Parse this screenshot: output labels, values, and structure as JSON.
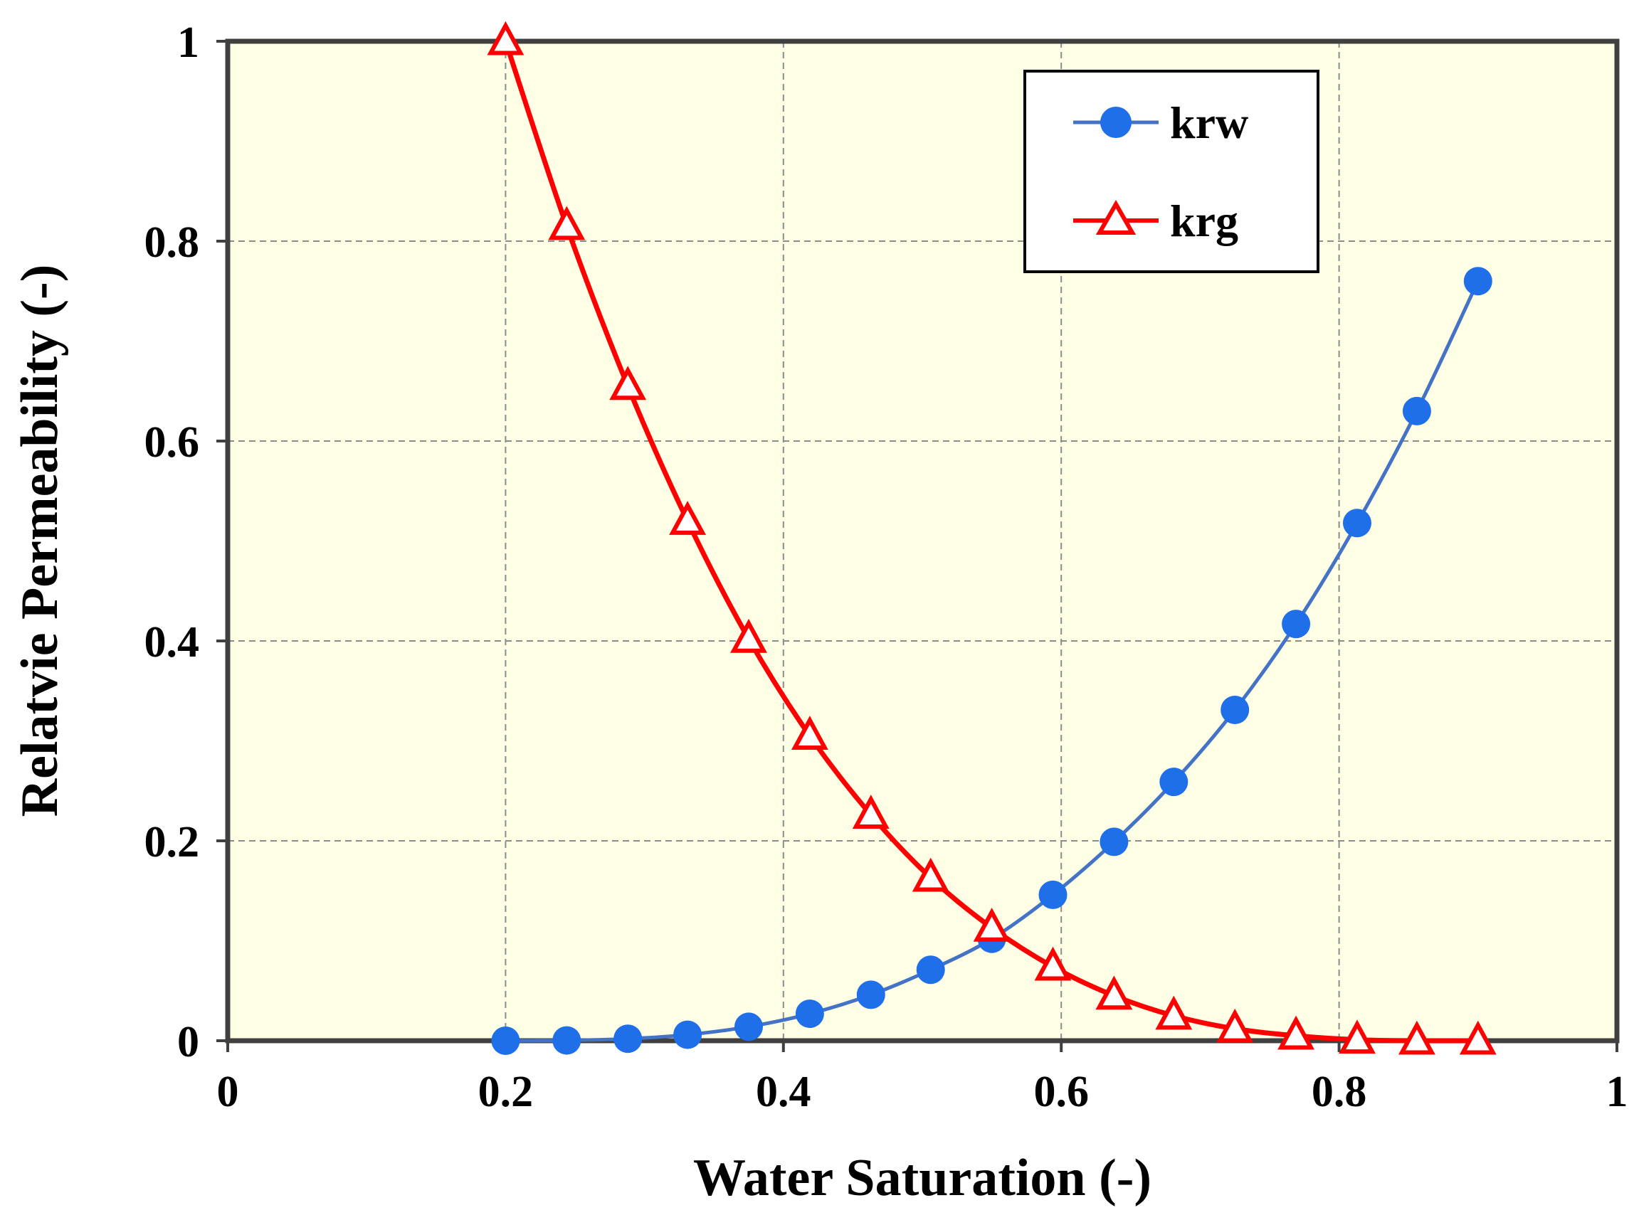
{
  "chart_data": {
    "type": "line",
    "title": "",
    "xlabel": "Water Saturation (-)",
    "ylabel": "Relatvie Permeability (-)",
    "xlim": [
      0,
      1
    ],
    "ylim": [
      0,
      1
    ],
    "xticks": [
      0,
      0.2,
      0.4,
      0.6,
      0.8,
      1
    ],
    "yticks": [
      0,
      0.2,
      0.4,
      0.6,
      0.8,
      1
    ],
    "xtick_labels": [
      "0",
      "0.2",
      "0.4",
      "0.6",
      "0.8",
      "1"
    ],
    "ytick_labels": [
      "0",
      "0.2",
      "0.4",
      "0.6",
      "0.8",
      "1"
    ],
    "grid": true,
    "plot_background": "#ffffe6",
    "legend_position": "top-right",
    "x": [
      0.2,
      0.244,
      0.288,
      0.331,
      0.375,
      0.419,
      0.463,
      0.506,
      0.55,
      0.594,
      0.638,
      0.681,
      0.725,
      0.769,
      0.813,
      0.856,
      0.9
    ],
    "series": [
      {
        "name": "krw",
        "color": "#4472c4",
        "marker_color": "#1f6fe8",
        "marker": "circle",
        "values": [
          0.0,
          0.0003,
          0.002,
          0.006,
          0.014,
          0.027,
          0.046,
          0.071,
          0.102,
          0.146,
          0.199,
          0.259,
          0.331,
          0.417,
          0.518,
          0.63,
          0.76
        ]
      },
      {
        "name": "krg",
        "color": "#ff0000",
        "marker_color": "#ff0000",
        "marker": "triangle",
        "values": [
          1.0,
          0.815,
          0.655,
          0.52,
          0.402,
          0.305,
          0.226,
          0.163,
          0.113,
          0.074,
          0.045,
          0.025,
          0.012,
          0.005,
          0.001,
          0.0,
          0.0
        ]
      }
    ]
  }
}
